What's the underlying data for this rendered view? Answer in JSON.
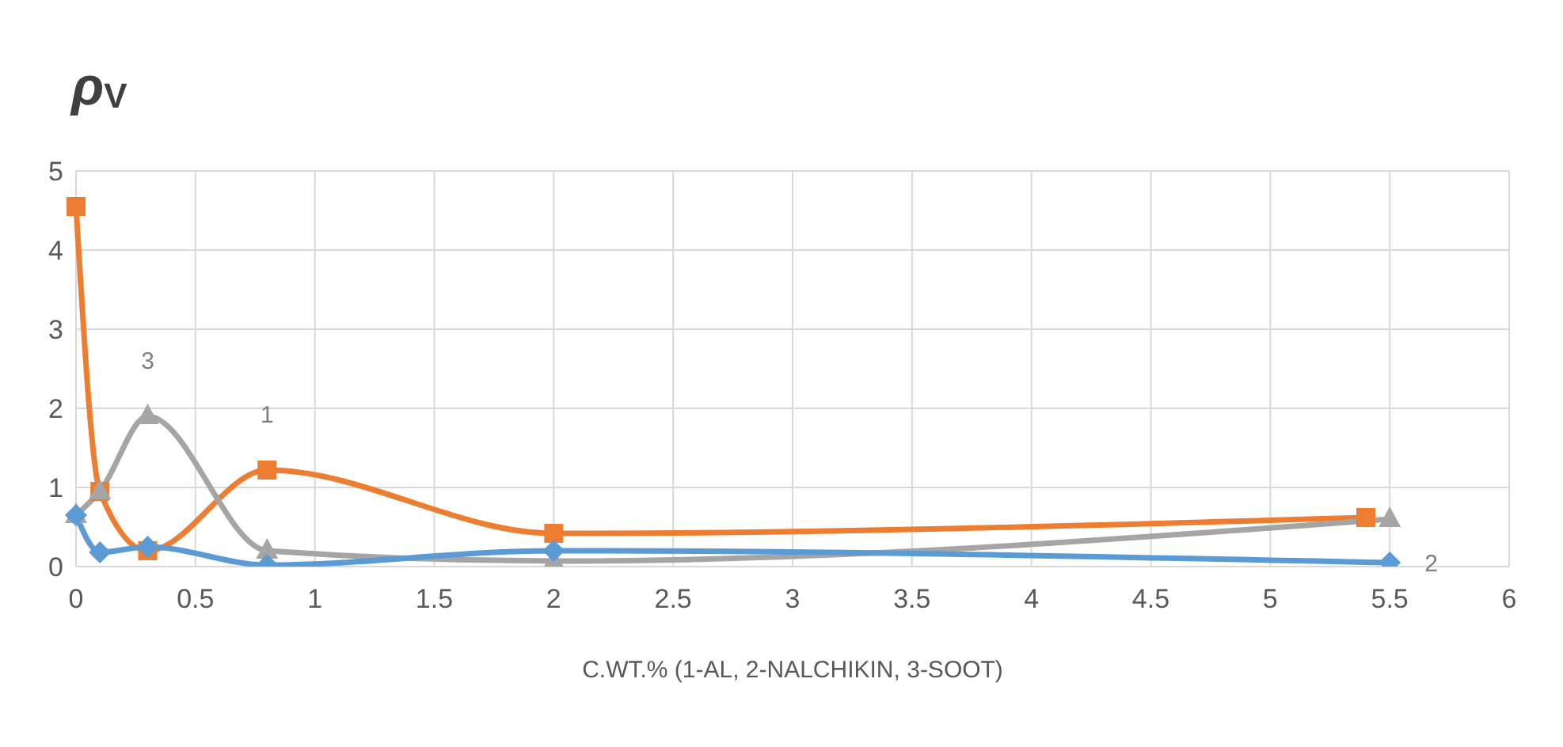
{
  "chart_data": {
    "type": "line",
    "ylabel": "ρ$_{V}$",
    "xlabel": "C.WT.% (1-AL, 2-NALCHIKIN, 3-SOOT)",
    "series": [
      {
        "color": "#ed7d31",
        "marker": "square",
        "x": [
          0,
          0.1,
          0.3,
          0.8,
          2,
          5.4
        ],
        "values": [
          4.55,
          0.95,
          0.2,
          1.22,
          0.42,
          0.62
        ]
      },
      {
        "color": "#a5a5a5",
        "marker": "triangle",
        "x": [
          0,
          0.1,
          0.3,
          0.8,
          2,
          5.5
        ],
        "values": [
          0.65,
          0.95,
          1.9,
          0.2,
          0.07,
          0.6
        ]
      },
      {
        "color": "#5b9bd5",
        "marker": "diamond",
        "x": [
          0,
          0.1,
          0.3,
          0.8,
          2,
          5.5
        ],
        "values": [
          0.65,
          0.18,
          0.25,
          0.02,
          0.2,
          0.05
        ]
      }
    ],
    "annotations": [
      {
        "text": "3",
        "x": 0.3,
        "y": 1.9
      },
      {
        "text": "1",
        "x": 0.8,
        "y": 1.22
      },
      {
        "text": "2",
        "x": 5.5,
        "y": 0.05
      }
    ],
    "xlim": [
      0,
      6
    ],
    "xticks": [
      0,
      0.5,
      1,
      1.5,
      2,
      2.5,
      3,
      3.5,
      4,
      4.5,
      5,
      5.5,
      6
    ],
    "ylim": [
      0,
      5
    ],
    "yticks": [
      0,
      1,
      2,
      3,
      4,
      5
    ],
    "grid": true,
    "line_style": "solid"
  }
}
